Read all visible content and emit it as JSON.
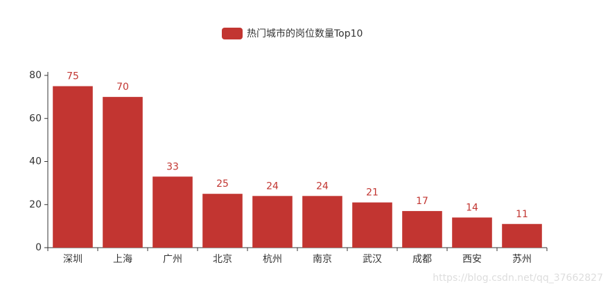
{
  "chart_data": {
    "type": "bar",
    "categories": [
      "深圳",
      "上海",
      "广州",
      "北京",
      "杭州",
      "南京",
      "武汉",
      "成都",
      "西安",
      "苏州"
    ],
    "series": [
      {
        "name": "热门城市的岗位数量Top10",
        "color": "#c23531",
        "values": [
          75,
          70,
          33,
          25,
          24,
          24,
          21,
          17,
          14,
          11
        ]
      }
    ],
    "ylim": [
      0,
      80
    ],
    "yticks": [
      0,
      20,
      40,
      60,
      80
    ],
    "grid": false,
    "legend": "top"
  },
  "watermark": "https://blog.csdn.net/qq_37662827"
}
